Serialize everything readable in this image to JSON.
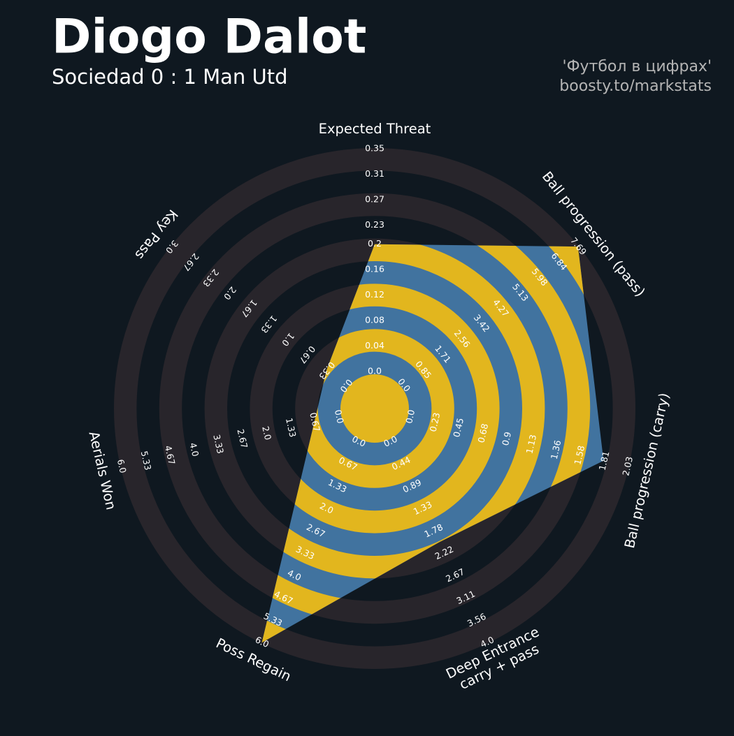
{
  "chart_data": {
    "type": "radar",
    "title": "Diogo Dalot",
    "subtitle": "Sociedad 0 : 1 Man Utd",
    "credits": [
      "'Футбол в цифрах'",
      "boosty.to/markstats"
    ],
    "params": [
      "Expected Threat",
      "Ball progression (pass)",
      "Ball progression (carry)",
      "Deep Entrance\ncarry + pass",
      "Poss Regain",
      "Aerials Won",
      "Key Pass"
    ],
    "values": [
      0.2,
      7.69,
      1.8,
      2.0,
      6.0,
      0.67,
      0.33
    ],
    "ranges": [
      [
        0,
        0.35
      ],
      [
        0,
        7.69
      ],
      [
        0,
        2.03
      ],
      [
        0,
        4.0
      ],
      [
        0,
        6.0
      ],
      [
        0,
        6.0
      ],
      [
        0,
        3.0
      ]
    ],
    "ticks": [
      [
        {
          "value": 0,
          "label": "0.0"
        },
        0.04,
        0.08,
        0.12,
        0.16,
        0.2,
        0.23,
        0.27,
        0.31,
        0.35
      ],
      [
        {
          "value": 0,
          "label": "0.0"
        },
        0.85,
        1.71,
        2.56,
        3.42,
        4.27,
        5.13,
        5.98,
        6.84,
        7.69
      ],
      [
        {
          "value": 0,
          "label": "0.0"
        },
        0.23,
        0.45,
        0.68,
        0.9,
        1.13,
        1.36,
        1.58,
        1.81,
        2.03
      ],
      [
        {
          "value": 0,
          "label": "0.0"
        },
        0.44,
        0.89,
        1.33,
        1.78,
        2.22,
        2.67,
        3.11,
        3.56,
        {
          "value": 4,
          "label": "4.0"
        }
      ],
      [
        {
          "value": 0,
          "label": "0.0"
        },
        0.67,
        1.33,
        {
          "value": 2,
          "label": "2.0"
        },
        2.67,
        3.33,
        {
          "value": 4,
          "label": "4.0"
        },
        4.67,
        5.33,
        {
          "value": 6,
          "label": "6.0"
        }
      ],
      [
        {
          "value": 0,
          "label": "0.0"
        },
        0.67,
        1.33,
        {
          "value": 2,
          "label": "2.0"
        },
        2.67,
        3.33,
        {
          "value": 4,
          "label": "4.0"
        },
        4.67,
        5.33,
        {
          "value": 6,
          "label": "6.0"
        }
      ],
      [
        {
          "value": 0,
          "label": "0.0"
        },
        0.33,
        0.67,
        {
          "value": 1,
          "label": "1.0"
        },
        1.33,
        1.67,
        {
          "value": 2,
          "label": "2.0"
        },
        2.33,
        2.67,
        {
          "value": 3,
          "label": "3.0"
        }
      ]
    ],
    "color": "#41739f",
    "ring_color": "#28252b",
    "ring_highlight_color": "#e2b61e"
  }
}
